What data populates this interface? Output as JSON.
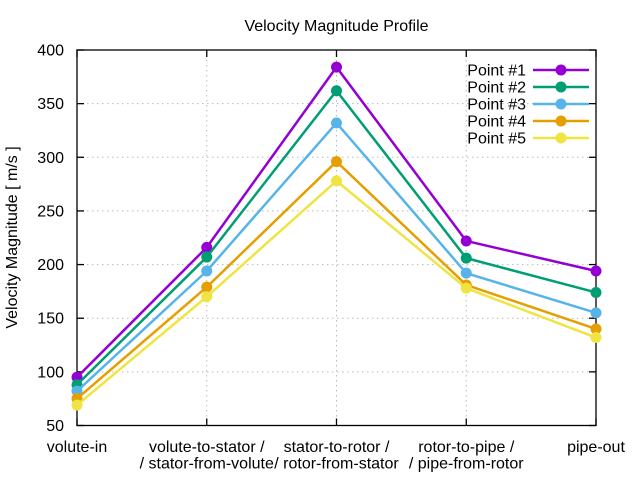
{
  "chart_data": {
    "type": "line",
    "title": "Velocity Magnitude Profile",
    "ylabel": "Velocity Magnitude [ m/s ]",
    "xlabel": "",
    "categories": [
      [
        "volute-in"
      ],
      [
        "volute-to-stator /",
        "/ stator-from-volute"
      ],
      [
        "stator-to-rotor /",
        "/ rotor-from-stator"
      ],
      [
        "rotor-to-pipe /",
        "/ pipe-from-rotor"
      ],
      [
        "pipe-out"
      ]
    ],
    "series": [
      {
        "name": "Point #1",
        "color": "#9400d3",
        "values": [
          95,
          216,
          384,
          222,
          194
        ]
      },
      {
        "name": "Point #2",
        "color": "#009e73",
        "values": [
          88,
          207,
          362,
          206,
          174
        ]
      },
      {
        "name": "Point #3",
        "color": "#56b4e9",
        "values": [
          82,
          194,
          332,
          192,
          155
        ]
      },
      {
        "name": "Point #4",
        "color": "#e69f00",
        "values": [
          75,
          179,
          296,
          181,
          140
        ]
      },
      {
        "name": "Point #5",
        "color": "#f0e442",
        "values": [
          69,
          170,
          278,
          178,
          132
        ]
      }
    ],
    "ylim": [
      50,
      400
    ],
    "ytick_step": 50,
    "ytick_labels": [
      "50",
      "100",
      "150",
      "200",
      "250",
      "300",
      "350",
      "400"
    ],
    "grid": true,
    "grid_style": "dotted",
    "legend_position": "top-right",
    "colors": {
      "background": "#ffffff",
      "axis": "#000000",
      "grid": "#b9b9b9",
      "text": "#000000"
    }
  }
}
